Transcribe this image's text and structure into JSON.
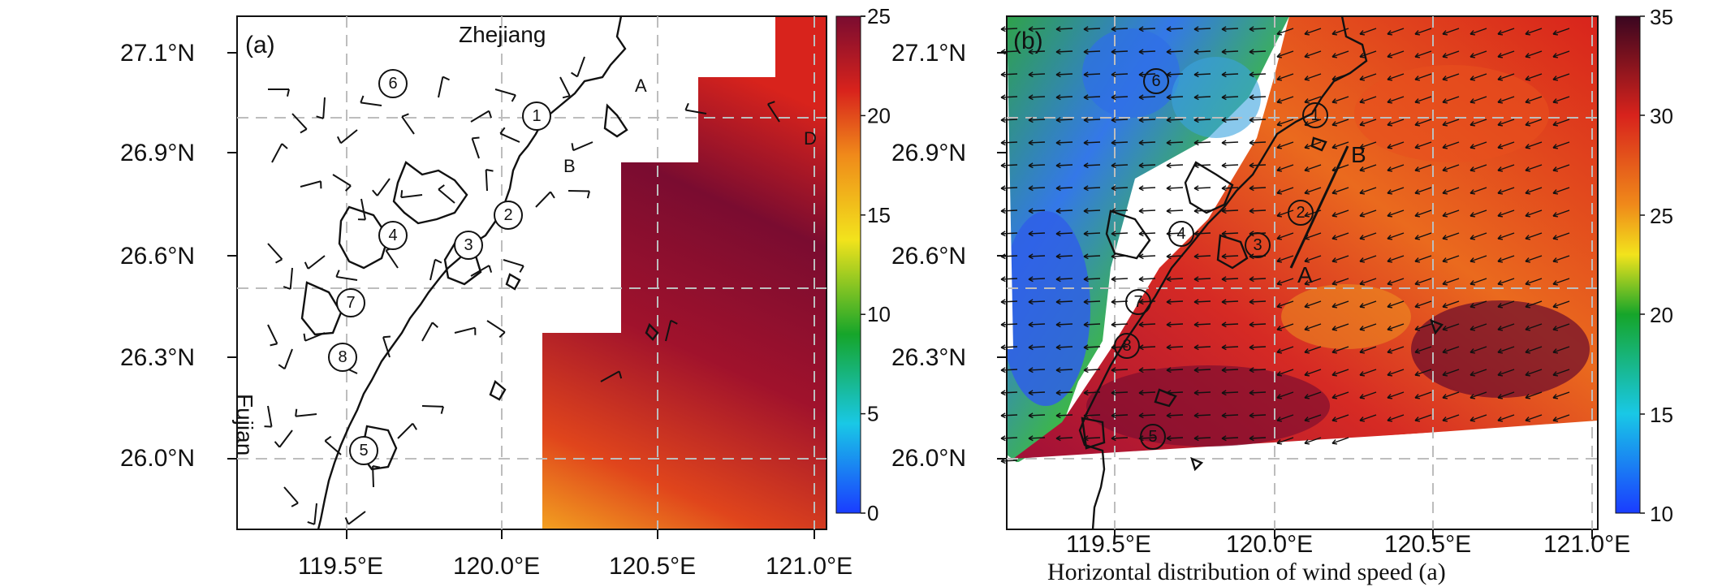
{
  "caption_fragment": "Horizontal distribution of wind speed (a)",
  "panels": [
    {
      "tag": "(a)",
      "lat_ticks": [
        "27.1°N",
        "26.9°N",
        "26.6°N",
        "26.3°N",
        "26.0°N"
      ],
      "lon_ticks": [
        "119.5°E",
        "120.0°E",
        "120.5°E",
        "121.0°E"
      ],
      "colorbar_ticks": [
        "25",
        "20",
        "15",
        "10",
        "5",
        "0"
      ],
      "colorbar_range": [
        0,
        25
      ],
      "place_labels": {
        "zhejiang": "Zhejiang",
        "fujian": "Fujian"
      },
      "point_labels": {
        "a": "A",
        "b": "B",
        "d": "D"
      },
      "stations": [
        "6",
        "1",
        "2",
        "4",
        "3",
        "7",
        "8",
        "5"
      ]
    },
    {
      "tag": "(b)",
      "lat_ticks": [
        "27.1°N",
        "26.9°N",
        "26.6°N",
        "26.3°N",
        "26.0°N"
      ],
      "lon_ticks": [
        "119.5°E",
        "120.0°E",
        "120.5°E",
        "121.0°E"
      ],
      "colorbar_ticks": [
        "35",
        "30",
        "25",
        "20",
        "15",
        "10"
      ],
      "colorbar_range": [
        10,
        35
      ],
      "point_labels": {
        "a": "A",
        "b": "B"
      },
      "stations": [
        "6",
        "1",
        "2",
        "4",
        "3",
        "7",
        "8",
        "5"
      ]
    }
  ],
  "colors": {
    "cmap_low": "#1a3cff",
    "cmap_mid": "#16a52a",
    "cmap_yellow": "#f2e31c",
    "cmap_orange": "#f08a1a",
    "cmap_red": "#d8231c",
    "cmap_high": "#5a0a2a",
    "grid": "#bdbdbd"
  }
}
